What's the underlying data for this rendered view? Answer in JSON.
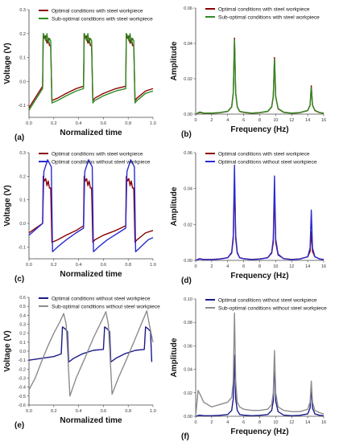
{
  "chart_data": [
    {
      "id": "a",
      "type": "line",
      "panel_label": "(a)",
      "xlabel": "Normalized time",
      "ylabel": "Voltage (V)",
      "xlim": [
        0,
        1.0
      ],
      "ylim": [
        -0.15,
        0.3
      ],
      "xticks": [
        "0.0",
        "0.2",
        "0.4",
        "0.6",
        "0.8",
        "1.0"
      ],
      "yticks": [
        "-0.1",
        "0.0",
        "0.1",
        "0.2",
        "0.3"
      ],
      "legend": "top-right",
      "series": [
        {
          "name": "Optimal conditions with steel workpiece",
          "color": "#8b0000",
          "x": [
            0.0,
            0.11,
            0.115,
            0.125,
            0.135,
            0.145,
            0.155,
            0.165,
            0.175,
            0.185,
            0.23,
            0.3,
            0.38,
            0.44,
            0.445,
            0.455,
            0.465,
            0.475,
            0.485,
            0.495,
            0.505,
            0.515,
            0.53,
            0.6,
            0.7,
            0.78,
            0.785,
            0.795,
            0.805,
            0.815,
            0.825,
            0.835,
            0.845,
            0.855,
            0.87,
            0.94,
            1.0
          ],
          "y": [
            -0.11,
            -0.02,
            0.2,
            0.18,
            0.19,
            0.16,
            0.18,
            0.15,
            0.15,
            -0.08,
            -0.07,
            -0.05,
            -0.03,
            -0.02,
            0.2,
            0.18,
            0.19,
            0.16,
            0.18,
            0.15,
            0.15,
            -0.08,
            -0.07,
            -0.05,
            -0.03,
            -0.02,
            0.2,
            0.18,
            0.19,
            0.16,
            0.18,
            0.15,
            0.15,
            -0.08,
            -0.07,
            -0.04,
            -0.03
          ]
        },
        {
          "name": "Sub-optimal conditions with steel workpiece",
          "color": "#2e8b22",
          "x": [
            0.0,
            0.11,
            0.115,
            0.125,
            0.135,
            0.145,
            0.155,
            0.165,
            0.175,
            0.185,
            0.23,
            0.3,
            0.38,
            0.44,
            0.445,
            0.455,
            0.465,
            0.475,
            0.485,
            0.495,
            0.505,
            0.515,
            0.53,
            0.6,
            0.7,
            0.78,
            0.785,
            0.795,
            0.805,
            0.815,
            0.825,
            0.835,
            0.845,
            0.855,
            0.87,
            0.94,
            1.0
          ],
          "y": [
            -0.12,
            -0.03,
            0.2,
            0.19,
            0.17,
            0.2,
            0.16,
            0.18,
            0.17,
            -0.09,
            -0.08,
            -0.06,
            -0.04,
            -0.03,
            0.2,
            0.19,
            0.17,
            0.2,
            0.16,
            0.18,
            0.17,
            -0.09,
            -0.08,
            -0.06,
            -0.04,
            -0.03,
            0.2,
            0.19,
            0.17,
            0.2,
            0.16,
            0.18,
            0.17,
            -0.09,
            -0.08,
            -0.05,
            -0.04
          ]
        }
      ]
    },
    {
      "id": "b",
      "type": "line",
      "panel_label": "(b)",
      "xlabel": "Frequency (Hz)",
      "ylabel": "Amplitude",
      "xlim": [
        0,
        16
      ],
      "ylim": [
        0,
        0.06
      ],
      "xticks": [
        "0",
        "2",
        "4",
        "6",
        "8",
        "10",
        "12",
        "14",
        "16"
      ],
      "yticks": [
        "0.00",
        "0.02",
        "0.04",
        "0.06"
      ],
      "legend": "top-right",
      "series": [
        {
          "name": "Optimal conditions with steel workpiece",
          "color": "#8b0000",
          "x": [
            0,
            0.5,
            1,
            2,
            3,
            4,
            4.5,
            4.7,
            4.85,
            5.0,
            5.2,
            5.5,
            6,
            7,
            8,
            9,
            9.5,
            9.7,
            9.85,
            10.0,
            10.3,
            11,
            12,
            13,
            14,
            14.3,
            14.45,
            14.6,
            14.9,
            15.5,
            16
          ],
          "y": [
            0.0,
            0.001,
            0.0005,
            0.0005,
            0.0008,
            0.0015,
            0.004,
            0.012,
            0.043,
            0.012,
            0.004,
            0.0015,
            0.001,
            0.0005,
            0.0008,
            0.0015,
            0.004,
            0.01,
            0.032,
            0.01,
            0.003,
            0.001,
            0.0005,
            0.0008,
            0.002,
            0.005,
            0.016,
            0.005,
            0.002,
            0.0008,
            0.0005
          ]
        },
        {
          "name": "Sub-optimal conditions with steel workpiece",
          "color": "#2e8b22",
          "x": [
            0,
            0.5,
            1,
            2,
            3,
            4,
            4.5,
            4.7,
            4.85,
            5.0,
            5.2,
            5.5,
            6,
            7,
            8,
            9,
            9.5,
            9.7,
            9.85,
            10.0,
            10.3,
            11,
            12,
            13,
            14,
            14.3,
            14.45,
            14.6,
            14.9,
            15.5,
            16
          ],
          "y": [
            0.0,
            0.0012,
            0.0006,
            0.0006,
            0.0009,
            0.0016,
            0.0042,
            0.012,
            0.042,
            0.012,
            0.0042,
            0.0016,
            0.0011,
            0.0006,
            0.0009,
            0.0016,
            0.0042,
            0.01,
            0.031,
            0.01,
            0.0032,
            0.0011,
            0.0006,
            0.0009,
            0.0021,
            0.0052,
            0.015,
            0.0052,
            0.0021,
            0.0009,
            0.0006
          ]
        }
      ]
    },
    {
      "id": "c",
      "type": "line",
      "panel_label": "(c)",
      "xlabel": "Normalized time",
      "ylabel": "Voltage (V)",
      "xlim": [
        0,
        1.0
      ],
      "ylim": [
        -0.15,
        0.3
      ],
      "xticks": [
        "0.0",
        "0.2",
        "0.4",
        "0.6",
        "0.8",
        "1.0"
      ],
      "yticks": [
        "-0.1",
        "0.0",
        "0.1",
        "0.2",
        "0.3"
      ],
      "legend": "top-right",
      "series": [
        {
          "name": "Optimal conditions with steel workpiece",
          "color": "#8b0000",
          "x": [
            0.0,
            0.11,
            0.115,
            0.125,
            0.135,
            0.145,
            0.155,
            0.165,
            0.175,
            0.185,
            0.23,
            0.3,
            0.38,
            0.44,
            0.445,
            0.455,
            0.465,
            0.475,
            0.485,
            0.495,
            0.505,
            0.515,
            0.53,
            0.6,
            0.7,
            0.78,
            0.785,
            0.795,
            0.805,
            0.815,
            0.825,
            0.835,
            0.845,
            0.855,
            0.87,
            0.94,
            1.0
          ],
          "y": [
            -0.04,
            0.0,
            0.2,
            0.18,
            0.19,
            0.16,
            0.18,
            0.15,
            0.15,
            -0.08,
            -0.07,
            -0.05,
            -0.03,
            -0.01,
            0.2,
            0.18,
            0.19,
            0.16,
            0.18,
            0.15,
            0.15,
            -0.08,
            -0.07,
            -0.05,
            -0.03,
            -0.01,
            0.2,
            0.18,
            0.19,
            0.16,
            0.18,
            0.15,
            0.15,
            -0.08,
            -0.07,
            -0.04,
            -0.03
          ]
        },
        {
          "name": "Optimal conditions without steel workpiece",
          "color": "#2b2bd0",
          "x": [
            0.0,
            0.11,
            0.12,
            0.15,
            0.18,
            0.19,
            0.23,
            0.3,
            0.38,
            0.44,
            0.45,
            0.48,
            0.51,
            0.52,
            0.56,
            0.63,
            0.72,
            0.78,
            0.79,
            0.82,
            0.85,
            0.86,
            0.9,
            0.96,
            1.0
          ],
          "y": [
            -0.05,
            0.0,
            0.22,
            0.27,
            0.24,
            -0.12,
            -0.1,
            -0.07,
            -0.04,
            -0.02,
            0.22,
            0.27,
            0.24,
            -0.12,
            -0.1,
            -0.07,
            -0.04,
            -0.02,
            0.22,
            0.27,
            0.24,
            -0.12,
            -0.1,
            -0.07,
            -0.06
          ]
        }
      ]
    },
    {
      "id": "d",
      "type": "line",
      "panel_label": "(d)",
      "xlabel": "Frequency (Hz)",
      "ylabel": "Amplitude",
      "xlim": [
        0,
        16
      ],
      "ylim": [
        0,
        0.06
      ],
      "xticks": [
        "0",
        "2",
        "4",
        "6",
        "8",
        "10",
        "12",
        "14",
        "16"
      ],
      "yticks": [
        "0.00",
        "0.02",
        "0.04",
        "0.06"
      ],
      "legend": "top-right",
      "series": [
        {
          "name": "Optimal conditions with steel workpiece",
          "color": "#8b0000",
          "x": [
            0,
            0.5,
            1,
            2,
            3,
            4,
            4.5,
            4.7,
            4.85,
            5.0,
            5.2,
            5.5,
            6,
            7,
            8,
            9,
            9.5,
            9.7,
            9.85,
            10.0,
            10.3,
            11,
            12,
            13,
            14,
            14.3,
            14.45,
            14.6,
            14.9,
            15.5,
            16
          ],
          "y": [
            0.0,
            0.001,
            0.0005,
            0.0005,
            0.0008,
            0.0015,
            0.004,
            0.012,
            0.044,
            0.012,
            0.004,
            0.0015,
            0.001,
            0.0005,
            0.0008,
            0.0015,
            0.004,
            0.01,
            0.038,
            0.01,
            0.003,
            0.001,
            0.0005,
            0.0008,
            0.002,
            0.005,
            0.016,
            0.005,
            0.002,
            0.0008,
            0.0005
          ]
        },
        {
          "name": "Optimal conditions without steel workpiece",
          "color": "#2b2bd0",
          "x": [
            0,
            0.5,
            1,
            2,
            3,
            4,
            4.5,
            4.7,
            4.85,
            5.0,
            5.2,
            5.5,
            6,
            7,
            8,
            9,
            9.5,
            9.7,
            9.85,
            10.0,
            10.3,
            11,
            12,
            13,
            14,
            14.3,
            14.45,
            14.6,
            14.9,
            15.5,
            16
          ],
          "y": [
            0.0,
            0.0008,
            0.0004,
            0.0004,
            0.0007,
            0.0014,
            0.0045,
            0.014,
            0.053,
            0.014,
            0.0045,
            0.0014,
            0.0009,
            0.0004,
            0.0007,
            0.0014,
            0.0045,
            0.012,
            0.047,
            0.012,
            0.0035,
            0.0009,
            0.0004,
            0.0007,
            0.002,
            0.007,
            0.028,
            0.007,
            0.002,
            0.0007,
            0.0004
          ]
        }
      ]
    },
    {
      "id": "e",
      "type": "line",
      "panel_label": "(e)",
      "xlabel": "Normalized time",
      "ylabel": "Voltage (V)",
      "xlim": [
        0,
        1.0
      ],
      "ylim": [
        -0.6,
        0.6
      ],
      "xticks": [
        "0.0",
        "0.2",
        "0.4",
        "0.6",
        "0.8",
        "1.0"
      ],
      "yticks": [
        "-0.6",
        "-0.5",
        "-0.4",
        "-0.3",
        "-0.2",
        "-0.1",
        "0.0",
        "0.1",
        "0.2",
        "0.3",
        "0.4",
        "0.5",
        "0.6"
      ],
      "legend": "top-right",
      "series": [
        {
          "name": "Optimal conditions without steel workpiece",
          "color": "#1a1a8c",
          "x": [
            0.0,
            0.1,
            0.2,
            0.26,
            0.27,
            0.29,
            0.31,
            0.32,
            0.36,
            0.43,
            0.52,
            0.6,
            0.61,
            0.63,
            0.65,
            0.66,
            0.7,
            0.77,
            0.86,
            0.93,
            0.94,
            0.96,
            0.98,
            0.99
          ],
          "y": [
            -0.1,
            -0.08,
            -0.06,
            -0.03,
            0.27,
            0.25,
            0.22,
            -0.12,
            -0.08,
            -0.03,
            0.01,
            0.02,
            0.27,
            0.25,
            0.22,
            -0.12,
            -0.08,
            -0.03,
            0.01,
            0.02,
            0.27,
            0.25,
            0.22,
            -0.12
          ]
        },
        {
          "name": "Sub-optimal conditions without steel workpiece",
          "color": "#8c8c8c",
          "x": [
            0.0,
            0.05,
            0.1,
            0.15,
            0.2,
            0.25,
            0.28,
            0.3,
            0.33,
            0.38,
            0.45,
            0.52,
            0.59,
            0.62,
            0.64,
            0.67,
            0.72,
            0.79,
            0.86,
            0.92,
            0.95,
            0.97,
            1.0
          ],
          "y": [
            -0.43,
            -0.3,
            -0.12,
            0.05,
            0.2,
            0.33,
            0.42,
            0.3,
            -0.5,
            -0.3,
            -0.08,
            0.15,
            0.35,
            0.44,
            0.3,
            -0.48,
            -0.3,
            -0.08,
            0.15,
            0.35,
            0.45,
            0.3,
            0.1
          ]
        }
      ]
    },
    {
      "id": "f",
      "type": "line",
      "panel_label": "(f)",
      "xlabel": "Frequency (Hz)",
      "ylabel": "Amplitude",
      "xlim": [
        0,
        16
      ],
      "ylim": [
        0,
        0.1
      ],
      "xticks": [
        "0",
        "2",
        "4",
        "6",
        "8",
        "10",
        "12",
        "14",
        "16"
      ],
      "yticks": [
        "0.00",
        "0.02",
        "0.04",
        "0.06",
        "0.08",
        "0.10"
      ],
      "legend": "top-right",
      "series": [
        {
          "name": "Optimal conditions without steel workpiece",
          "color": "#1a1a8c",
          "x": [
            0,
            0.5,
            1,
            2,
            3,
            4,
            4.5,
            4.7,
            4.85,
            5.0,
            5.2,
            5.5,
            6,
            7,
            8,
            9,
            9.5,
            9.7,
            9.85,
            10.0,
            10.3,
            11,
            12,
            13,
            14,
            14.3,
            14.45,
            14.6,
            14.9,
            15.5,
            16
          ],
          "y": [
            0.0,
            0.001,
            0.0005,
            0.0005,
            0.0008,
            0.0015,
            0.005,
            0.015,
            0.052,
            0.015,
            0.005,
            0.0015,
            0.001,
            0.0005,
            0.0008,
            0.0015,
            0.005,
            0.013,
            0.047,
            0.013,
            0.004,
            0.001,
            0.0005,
            0.0008,
            0.002,
            0.007,
            0.025,
            0.007,
            0.002,
            0.0008,
            0.0005
          ]
        },
        {
          "name": "Sub-optimal conditions without steel workpiece",
          "color": "#8c8c8c",
          "x": [
            0,
            0.3,
            0.6,
            1,
            1.5,
            2,
            2.5,
            3,
            3.5,
            4,
            4.5,
            4.7,
            4.85,
            5.0,
            5.2,
            5.5,
            6,
            7,
            8,
            9,
            9.5,
            9.7,
            9.85,
            10.0,
            10.3,
            11,
            12,
            13,
            14,
            14.3,
            14.45,
            14.6,
            14.9,
            15.5,
            16
          ],
          "y": [
            0.0,
            0.022,
            0.018,
            0.012,
            0.01,
            0.008,
            0.009,
            0.01,
            0.011,
            0.012,
            0.016,
            0.03,
            0.088,
            0.03,
            0.012,
            0.008,
            0.006,
            0.005,
            0.005,
            0.006,
            0.01,
            0.02,
            0.056,
            0.02,
            0.008,
            0.005,
            0.004,
            0.004,
            0.006,
            0.012,
            0.03,
            0.012,
            0.005,
            0.003,
            0.002
          ]
        }
      ]
    }
  ]
}
